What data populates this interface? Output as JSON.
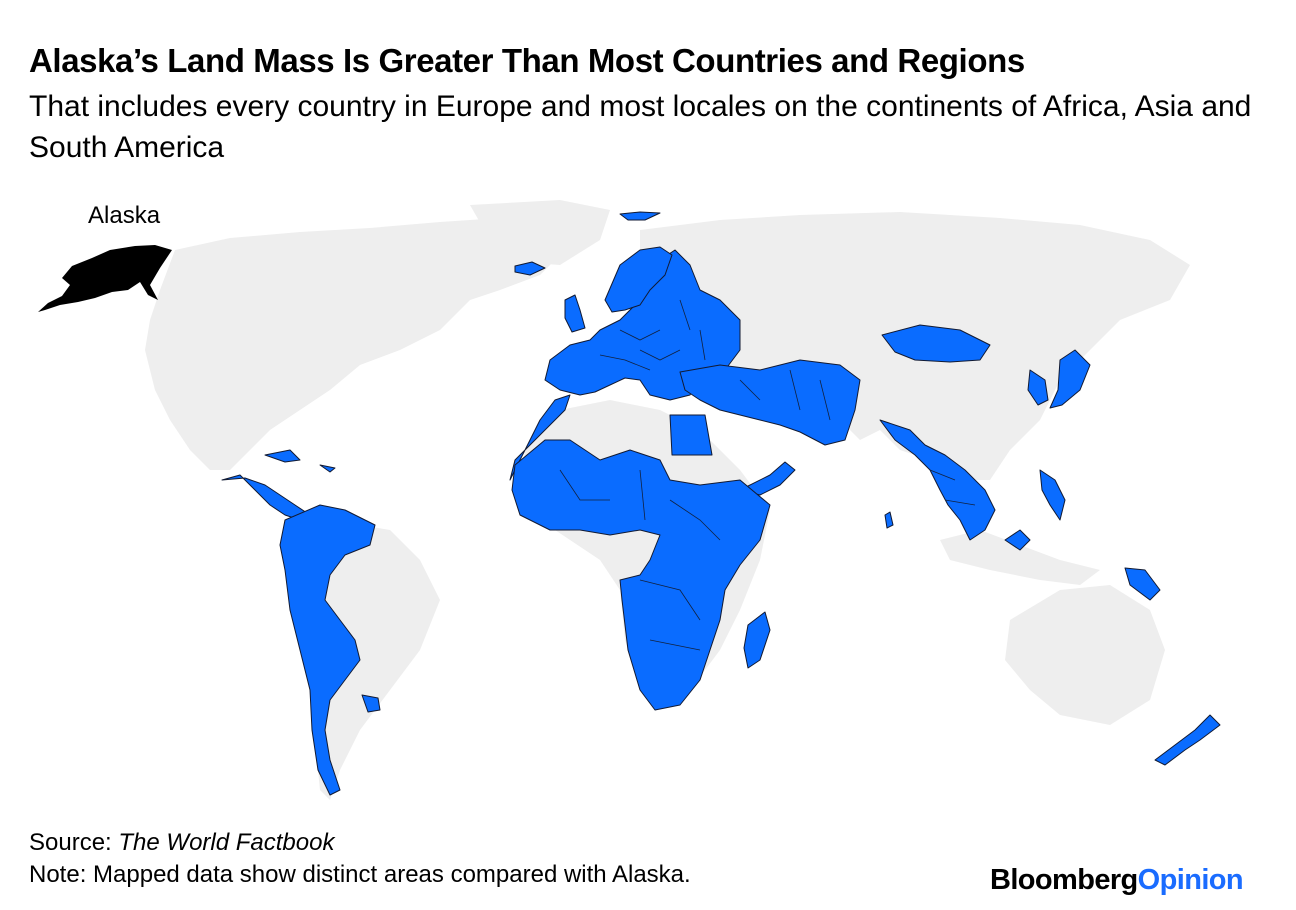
{
  "header": {
    "title": "Alaska’s Land Mass Is Greater Than Most Countries and Regions",
    "subtitle": "That includes every country in Europe and most locales on the continents of Africa, Asia and South America"
  },
  "map": {
    "label_alaska": "Alaska",
    "colors": {
      "highlight": "#0a6cff",
      "alaska": "#000000",
      "other_land": "#eeeeee"
    }
  },
  "footer": {
    "source_prefix": "Source: ",
    "source_name": "The World Factbook",
    "note": "Note: Mapped data show distinct areas compared with Alaska.",
    "brand_part1": "Bloomberg",
    "brand_part2": "Opinion"
  }
}
